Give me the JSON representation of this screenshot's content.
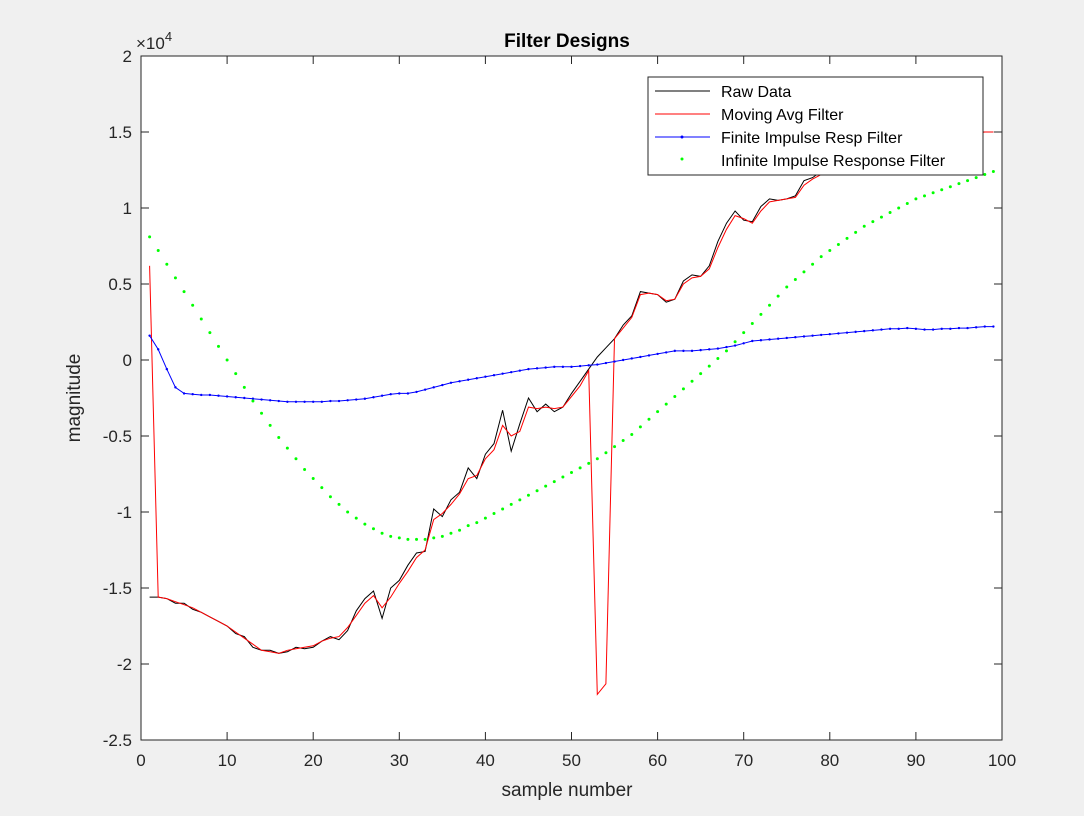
{
  "chart_data": {
    "type": "line",
    "title": "Filter Designs",
    "xlabel": "sample number",
    "ylabel": "magnitude",
    "xlim": [
      0,
      100
    ],
    "ylim": [
      -25000,
      20000
    ],
    "y_exponent_label": "×10",
    "y_exponent_power": "4",
    "xticks": [
      0,
      10,
      20,
      30,
      40,
      50,
      60,
      70,
      80,
      90,
      100
    ],
    "xtick_labels": [
      "0",
      "10",
      "20",
      "30",
      "40",
      "50",
      "60",
      "70",
      "80",
      "90",
      "100"
    ],
    "yticks": [
      -25000,
      -20000,
      -15000,
      -10000,
      -5000,
      0,
      5000,
      10000,
      15000,
      20000
    ],
    "ytick_labels": [
      "-2.5",
      "-2",
      "-1.5",
      "-1",
      "-0.5",
      "0",
      "0.5",
      "1",
      "1.5",
      "2"
    ],
    "grid": false,
    "legend_position": "top-right",
    "x": [
      1,
      2,
      3,
      4,
      5,
      6,
      7,
      8,
      9,
      10,
      11,
      12,
      13,
      14,
      15,
      16,
      17,
      18,
      19,
      20,
      21,
      22,
      23,
      24,
      25,
      26,
      27,
      28,
      29,
      30,
      31,
      32,
      33,
      34,
      35,
      36,
      37,
      38,
      39,
      40,
      41,
      42,
      43,
      44,
      45,
      46,
      47,
      48,
      49,
      50,
      51,
      52,
      53,
      54,
      55,
      56,
      57,
      58,
      59,
      60,
      61,
      62,
      63,
      64,
      65,
      66,
      67,
      68,
      69,
      70,
      71,
      72,
      73,
      74,
      75,
      76,
      77,
      78,
      79,
      80,
      81,
      82,
      83,
      84,
      85,
      86,
      87,
      88,
      89,
      90,
      91,
      92,
      93,
      94,
      95,
      96,
      97,
      98,
      99
    ],
    "series": [
      {
        "name": "Raw Data",
        "color": "#000000",
        "style": "line",
        "values": [
          -15600,
          -15600,
          -15700,
          -16000,
          -16000,
          -16400,
          -16600,
          -16900,
          -17200,
          -17500,
          -18000,
          -18200,
          -18900,
          -19100,
          -19100,
          -19300,
          -19200,
          -18900,
          -19000,
          -18900,
          -18500,
          -18200,
          -18400,
          -17800,
          -16500,
          -15700,
          -15200,
          -17000,
          -15000,
          -14500,
          -13500,
          -12700,
          -12600,
          -9800,
          -10300,
          -9200,
          -8700,
          -7100,
          -7800,
          -6200,
          -5500,
          -3300,
          -6000,
          -4200,
          -2500,
          -3400,
          -2900,
          -3400,
          -3100,
          -2200,
          -1400,
          -600,
          200,
          800,
          1400,
          2300,
          2900,
          4500,
          4400,
          4300,
          3800,
          4000,
          5200,
          5600,
          5500,
          6200,
          7800,
          9000,
          9800,
          9200,
          9100,
          10100,
          10600,
          10500,
          10600,
          10800,
          11800,
          12000,
          12400,
          12600,
          12600,
          12900,
          13100,
          13300,
          13400,
          13600,
          13900,
          14000,
          14200,
          14400,
          14400,
          14600,
          14700,
          14800,
          14900,
          14900,
          15000,
          15000,
          15000
        ]
      },
      {
        "name": "Moving Avg Filter",
        "color": "#ff0000",
        "style": "line",
        "values": [
          6200,
          -15600,
          -15700,
          -15900,
          -16100,
          -16300,
          -16600,
          -16900,
          -17200,
          -17500,
          -17900,
          -18300,
          -18700,
          -19100,
          -19200,
          -19300,
          -19100,
          -19000,
          -18900,
          -18800,
          -18500,
          -18300,
          -18200,
          -17600,
          -16800,
          -16000,
          -15500,
          -16300,
          -15600,
          -14700,
          -13900,
          -13000,
          -12500,
          -10500,
          -10100,
          -9500,
          -8800,
          -7800,
          -7600,
          -6500,
          -5900,
          -4300,
          -5000,
          -4700,
          -3100,
          -3200,
          -3100,
          -3200,
          -3100,
          -2400,
          -1700,
          -700,
          -22000,
          -21300,
          1400,
          2100,
          2800,
          4300,
          4400,
          4300,
          3900,
          4000,
          5000,
          5400,
          5500,
          6000,
          7400,
          8600,
          9500,
          9300,
          9000,
          9800,
          10400,
          10500,
          10600,
          10700,
          11500,
          11900,
          12200,
          12500,
          12600,
          12800,
          13000,
          13200,
          13400,
          13500,
          13800,
          13900,
          14100,
          14300,
          14400,
          14500,
          14600,
          14700,
          14800,
          14900,
          14900,
          15000,
          15000
        ]
      },
      {
        "name": "Finite Impulse Resp Filter",
        "color": "#0000ff",
        "style": "line-marker",
        "values": [
          1600,
          700,
          -600,
          -1800,
          -2200,
          -2250,
          -2300,
          -2300,
          -2350,
          -2400,
          -2450,
          -2500,
          -2550,
          -2600,
          -2650,
          -2700,
          -2750,
          -2750,
          -2750,
          -2750,
          -2750,
          -2700,
          -2700,
          -2650,
          -2600,
          -2550,
          -2450,
          -2350,
          -2250,
          -2200,
          -2200,
          -2100,
          -1950,
          -1800,
          -1650,
          -1500,
          -1400,
          -1300,
          -1200,
          -1100,
          -1000,
          -900,
          -800,
          -700,
          -600,
          -550,
          -500,
          -450,
          -450,
          -450,
          -400,
          -350,
          -300,
          -200,
          -100,
          0,
          100,
          200,
          300,
          400,
          500,
          600,
          600,
          600,
          650,
          700,
          750,
          850,
          950,
          1100,
          1250,
          1300,
          1350,
          1400,
          1450,
          1500,
          1550,
          1600,
          1650,
          1700,
          1750,
          1800,
          1850,
          1900,
          1950,
          2000,
          2050,
          2050,
          2100,
          2050,
          2000,
          2000,
          2050,
          2050,
          2100,
          2100,
          2150,
          2200,
          2200
        ]
      },
      {
        "name": "Infinite Impulse Response Filter",
        "color": "#00ff00",
        "style": "dots",
        "values": [
          8100,
          7200,
          6300,
          5400,
          4500,
          3600,
          2700,
          1800,
          900,
          0,
          -900,
          -1800,
          -2700,
          -3500,
          -4300,
          -5100,
          -5800,
          -6500,
          -7200,
          -7800,
          -8400,
          -9000,
          -9500,
          -10000,
          -10400,
          -10800,
          -11100,
          -11400,
          -11600,
          -11700,
          -11800,
          -11800,
          -11800,
          -11700,
          -11600,
          -11400,
          -11200,
          -10900,
          -10700,
          -10400,
          -10100,
          -9800,
          -9500,
          -9200,
          -8900,
          -8600,
          -8300,
          -8000,
          -7700,
          -7400,
          -7100,
          -6800,
          -6500,
          -6100,
          -5700,
          -5300,
          -4900,
          -4400,
          -3900,
          -3400,
          -2900,
          -2400,
          -1900,
          -1400,
          -900,
          -400,
          100,
          600,
          1200,
          1800,
          2400,
          3000,
          3600,
          4200,
          4800,
          5300,
          5800,
          6300,
          6800,
          7200,
          7600,
          8000,
          8400,
          8800,
          9100,
          9400,
          9700,
          10000,
          10300,
          10600,
          10800,
          11000,
          11200,
          11400,
          11600,
          11800,
          12000,
          12200,
          12400
        ]
      }
    ]
  }
}
